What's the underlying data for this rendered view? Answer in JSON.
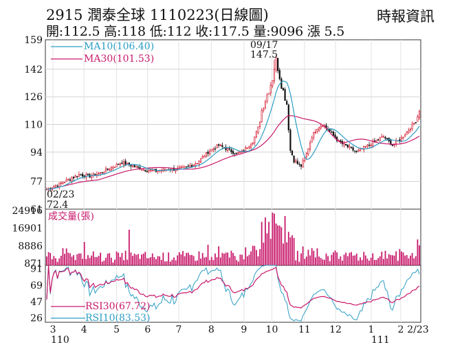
{
  "header": {
    "code": "2915",
    "name": "潤泰全球",
    "date": "1110223(日線圖)",
    "source": "時報資訊",
    "stats_line": "開:112.5 高:118 低:112 收:117.5 量:9096 漲 5.5"
  },
  "chart_data": [
    {
      "type": "candlestick",
      "title": "2915 潤泰全球 1110223(日線圖)",
      "yticks": [
        61,
        77,
        94,
        110,
        126,
        142,
        159
      ],
      "ylim": [
        61,
        159
      ],
      "months": [
        "3",
        "4",
        "5",
        "6",
        "7",
        "8",
        "9",
        "10",
        "11",
        "12",
        "1",
        "2",
        "2/23"
      ],
      "year_labels": [
        "110",
        "111"
      ],
      "start_annotation": {
        "date": "02/23",
        "value": "72.4"
      },
      "peak_annotation": {
        "date": "09/17",
        "value": "147.5"
      },
      "ma10": {
        "label": "MA10(106.40)",
        "value": 106.4
      },
      "ma30": {
        "label": "MA30(101.53)",
        "value": 101.53
      },
      "close_path": [
        [
          0,
          72.4
        ],
        [
          6,
          75
        ],
        [
          12,
          78
        ],
        [
          18,
          81
        ],
        [
          24,
          80
        ],
        [
          30,
          82
        ],
        [
          36,
          85
        ],
        [
          42,
          88
        ],
        [
          48,
          86
        ],
        [
          54,
          84
        ],
        [
          60,
          83
        ],
        [
          66,
          84
        ],
        [
          72,
          84
        ],
        [
          78,
          85
        ],
        [
          84,
          88
        ],
        [
          90,
          94
        ],
        [
          96,
          98
        ],
        [
          100,
          96
        ],
        [
          106,
          93
        ],
        [
          110,
          95
        ],
        [
          115,
          100
        ],
        [
          118,
          108
        ],
        [
          120,
          118
        ],
        [
          124,
          130
        ],
        [
          127,
          140
        ],
        [
          128,
          147.5
        ],
        [
          131,
          133
        ],
        [
          134,
          122
        ],
        [
          136,
          95
        ],
        [
          139,
          88
        ],
        [
          142,
          86
        ],
        [
          145,
          93
        ],
        [
          148,
          103
        ],
        [
          151,
          108
        ],
        [
          154,
          110
        ],
        [
          158,
          106
        ],
        [
          163,
          100
        ],
        [
          168,
          97
        ],
        [
          173,
          94
        ],
        [
          178,
          97
        ],
        [
          183,
          100
        ],
        [
          188,
          103
        ],
        [
          193,
          98
        ],
        [
          198,
          102
        ],
        [
          203,
          108
        ],
        [
          206,
          112
        ],
        [
          208,
          117.5
        ]
      ]
    },
    {
      "type": "bar",
      "title": "成交量(張)",
      "yticks": [
        871,
        8886,
        16901,
        24916
      ],
      "ylim": [
        0,
        24916
      ]
    },
    {
      "type": "line",
      "yticks": [
        26,
        47,
        69,
        91
      ],
      "ylim": [
        20,
        95
      ],
      "rsi30": {
        "label": "RSI30(67.72)",
        "value": 67.72
      },
      "rsi10": {
        "label": "RSI10(83.53)",
        "value": 83.53
      }
    }
  ]
}
